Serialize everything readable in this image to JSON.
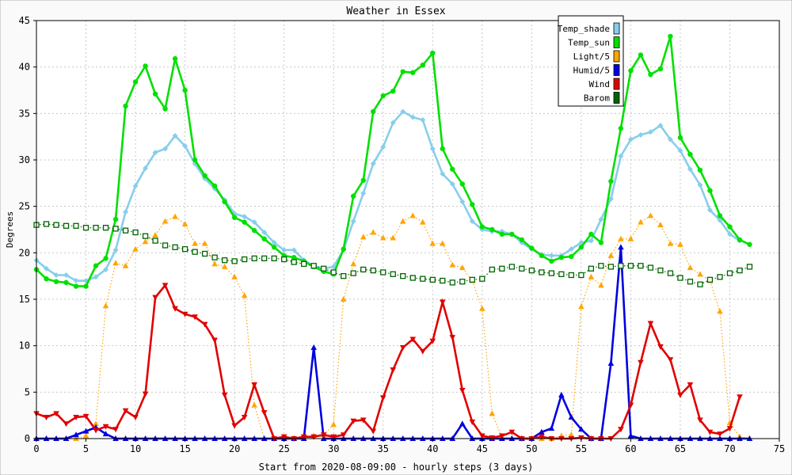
{
  "chart_data": {
    "type": "line",
    "title": "Weather in Essex",
    "xlabel": "Start from 2020-08-09:00 - hourly steps (3 days)",
    "ylabel": "Degrees",
    "xlim": [
      0,
      75
    ],
    "ylim": [
      0,
      45
    ],
    "xticks": [
      0,
      5,
      10,
      15,
      20,
      25,
      30,
      35,
      40,
      45,
      50,
      55,
      60,
      65,
      70,
      75
    ],
    "yticks": [
      0,
      5,
      10,
      15,
      20,
      25,
      30,
      35,
      40,
      45
    ],
    "grid": true,
    "legend_position": "top-right",
    "series": [
      {
        "name": "Temp_shade",
        "color": "#87ceeb",
        "marker": "diamond",
        "style": "solid",
        "values": [
          19.2,
          18.3,
          17.6,
          17.6,
          17.0,
          17.0,
          17.4,
          18.2,
          20.3,
          24.4,
          27.2,
          29.1,
          30.8,
          31.2,
          32.6,
          31.5,
          29.6,
          28.0,
          26.9,
          25.7,
          24.2,
          23.9,
          23.3,
          22.2,
          21.1,
          20.3,
          20.3,
          19.2,
          18.6,
          18.3,
          18.5,
          20.3,
          23.4,
          26.4,
          29.6,
          31.4,
          34.0,
          35.2,
          34.6,
          34.3,
          31.2,
          28.5,
          27.4,
          25.5,
          23.4,
          22.5,
          22.3,
          22.3,
          22.0,
          21.1,
          20.4,
          19.8,
          19.7,
          19.7,
          20.4,
          21.1,
          21.3,
          23.6,
          25.8,
          30.4,
          32.2,
          32.7,
          33.0,
          33.7,
          32.2,
          31.0,
          29.0,
          27.3,
          24.6,
          23.5,
          22.0,
          21.3
        ]
      },
      {
        "name": "Temp_sun",
        "color": "#00e000",
        "marker": "circle",
        "style": "solid",
        "values": [
          18.2,
          17.2,
          16.9,
          16.8,
          16.4,
          16.4,
          18.6,
          19.4,
          23.6,
          35.8,
          38.4,
          40.1,
          37.1,
          35.5,
          40.9,
          37.5,
          30.0,
          28.3,
          27.2,
          25.5,
          23.8,
          23.3,
          22.4,
          21.5,
          20.6,
          19.7,
          19.5,
          19.1,
          18.5,
          18.0,
          17.7,
          20.4,
          26.1,
          27.8,
          35.2,
          36.9,
          37.4,
          39.5,
          39.4,
          40.2,
          41.5,
          31.2,
          29.0,
          27.4,
          25.2,
          22.8,
          22.5,
          22.0,
          22.0,
          21.4,
          20.5,
          19.7,
          19.1,
          19.5,
          19.6,
          20.6,
          22.0,
          21.1,
          27.7,
          33.4,
          39.6,
          41.3,
          39.2,
          39.8,
          43.3,
          32.4,
          30.6,
          28.9,
          26.7,
          24.0,
          22.8,
          21.4,
          20.9
        ]
      },
      {
        "name": "Light/5",
        "color": "#ffa500",
        "marker": "triangle-up",
        "style": "dotted",
        "values": [
          0.0,
          0.0,
          0.0,
          0.0,
          0.0,
          0.3,
          1.6,
          14.3,
          18.9,
          18.6,
          20.4,
          21.2,
          21.9,
          23.4,
          23.9,
          23.1,
          21.0,
          21.0,
          18.8,
          18.5,
          17.4,
          15.4,
          3.6,
          0.0,
          0.0,
          0.0,
          0.0,
          0.0,
          0.3,
          0.4,
          1.5,
          15.0,
          18.8,
          21.7,
          22.2,
          21.6,
          21.6,
          23.4,
          24.0,
          23.3,
          21.0,
          21.0,
          18.7,
          18.4,
          17.0,
          14.0,
          2.7,
          0.1,
          0.0,
          0.0,
          0.0,
          0.0,
          0.0,
          0.3,
          0.4,
          14.2,
          17.4,
          16.5,
          19.7,
          21.5,
          21.5,
          23.3,
          24.0,
          23.0,
          21.0,
          20.9,
          18.4,
          17.7,
          17.0,
          13.7,
          1.7,
          0.2,
          0.0
        ]
      },
      {
        "name": "Humid/5",
        "color": "#0000e0",
        "marker": "triangle-up",
        "style": "solid",
        "values": [
          0.0,
          0.0,
          0.0,
          0.0,
          0.4,
          0.8,
          1.2,
          0.5,
          0.0,
          0.0,
          0.0,
          0.0,
          0.0,
          0.0,
          0.0,
          0.0,
          0.0,
          0.0,
          0.0,
          0.0,
          0.0,
          0.0,
          0.0,
          0.0,
          0.0,
          0.0,
          0.0,
          0.0,
          9.8,
          0.0,
          0.0,
          0.0,
          0.0,
          0.0,
          0.0,
          0.0,
          0.0,
          0.0,
          0.0,
          0.0,
          0.0,
          0.0,
          0.0,
          1.6,
          0.0,
          0.0,
          0.0,
          0.0,
          0.0,
          0.0,
          0.0,
          0.7,
          1.1,
          4.7,
          2.3,
          1.0,
          0.0,
          0.0,
          8.1,
          20.6,
          0.3,
          0.0,
          0.0,
          0.0,
          0.0,
          0.0,
          0.0,
          0.0,
          0.0,
          0.0,
          0.0,
          0.0,
          0.0
        ]
      },
      {
        "name": "Wind",
        "color": "#e00000",
        "marker": "triangle-down",
        "style": "solid",
        "values": [
          2.7,
          2.3,
          2.7,
          1.6,
          2.3,
          2.4,
          0.9,
          1.3,
          1.0,
          3.0,
          2.3,
          4.8,
          15.2,
          16.5,
          14.0,
          13.4,
          13.1,
          12.3,
          10.6,
          4.7,
          1.4,
          2.3,
          5.8,
          2.8,
          0.0,
          0.2,
          0.0,
          0.2,
          0.2,
          0.4,
          0.2,
          0.4,
          1.9,
          2.0,
          0.8,
          4.4,
          7.4,
          9.8,
          10.7,
          9.4,
          10.5,
          14.7,
          10.9,
          5.2,
          1.8,
          0.3,
          0.1,
          0.3,
          0.7,
          0.0,
          0.0,
          0.2,
          0.0,
          0.0,
          0.0,
          0.1,
          0.0,
          0.0,
          0.0,
          1.0,
          3.6,
          8.2,
          12.4,
          9.9,
          8.5,
          4.7,
          5.8,
          2.0,
          0.7,
          0.5,
          1.1,
          4.5
        ]
      },
      {
        "name": "Barom",
        "color": "#006400",
        "marker": "square",
        "style": "dotted",
        "values": [
          23.0,
          23.1,
          23.0,
          22.9,
          22.9,
          22.7,
          22.7,
          22.7,
          22.6,
          22.4,
          22.2,
          21.8,
          21.3,
          20.8,
          20.6,
          20.4,
          20.1,
          19.9,
          19.5,
          19.2,
          19.1,
          19.3,
          19.4,
          19.4,
          19.4,
          19.3,
          19.0,
          18.8,
          18.6,
          18.3,
          17.9,
          17.5,
          17.8,
          18.2,
          18.1,
          17.9,
          17.7,
          17.5,
          17.3,
          17.2,
          17.1,
          17.0,
          16.8,
          16.9,
          17.1,
          17.2,
          18.2,
          18.3,
          18.5,
          18.3,
          18.1,
          17.9,
          17.8,
          17.7,
          17.6,
          17.6,
          18.3,
          18.6,
          18.5,
          18.6,
          18.6,
          18.6,
          18.4,
          18.1,
          17.8,
          17.3,
          16.9,
          16.6,
          17.1,
          17.4,
          17.8,
          18.1,
          18.5
        ]
      }
    ]
  }
}
